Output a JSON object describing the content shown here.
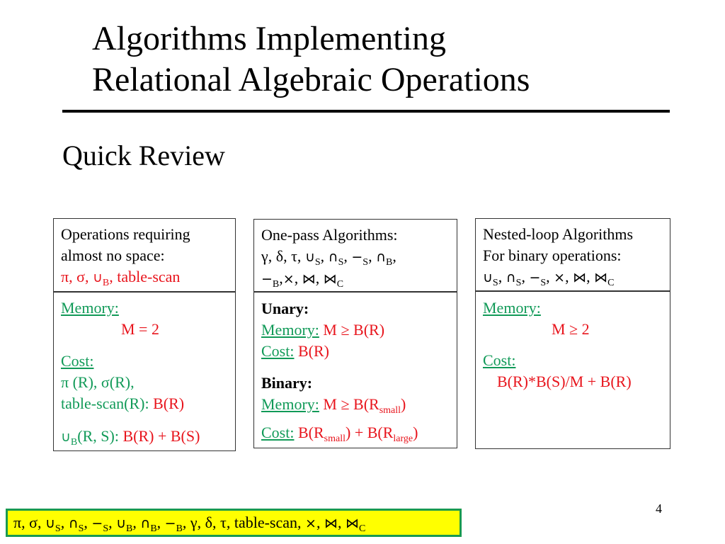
{
  "colors": {
    "k": "#000000",
    "r": "#e8141c",
    "g": "#119a58",
    "legend_bg": "#ffff00",
    "legend_border": "#1a9a50"
  },
  "title": {
    "line1": "Algorithms Implementing",
    "line2": "Relational Algebraic Operations"
  },
  "subtitle": "Quick Review",
  "page_number": "4",
  "boxes": [
    {
      "header": [
        [
          {
            "t": "Operations requiring",
            "k": "k"
          }
        ],
        [
          {
            "t": "almost no space:",
            "k": "k"
          }
        ],
        [
          {
            "t": "π, σ, ",
            "k": "r"
          },
          {
            "t": "∪",
            "k": "r",
            "sym": true
          },
          {
            "t": "",
            "s": "B",
            "k": "r"
          },
          {
            "t": ", table-scan",
            "k": "r"
          }
        ]
      ],
      "body": [
        [
          {
            "t": "Memory:",
            "k": "g",
            "u": true
          }
        ],
        [
          {
            "t": "M = 2",
            "k": "r"
          }
        ],
        [
          {
            "t": "Cost:",
            "k": "g",
            "u": true
          }
        ],
        [
          {
            "t": "π (R), σ(R),",
            "k": "g"
          }
        ],
        [
          {
            "t": "table-scan(R):  ",
            "k": "g"
          },
          {
            "t": "B(R)",
            "k": "r"
          }
        ],
        [
          {
            "t": "∪",
            "k": "g",
            "sym": true
          },
          {
            "t": "",
            "s": "B",
            "k": "g"
          },
          {
            "t": "(R, S): ",
            "k": "g"
          },
          {
            "t": "B(R) + B(S)",
            "k": "r"
          }
        ]
      ]
    },
    {
      "header": [
        [
          {
            "t": "One-pass Algorithms:",
            "k": "k"
          }
        ],
        [
          {
            "t": "γ,  δ,  τ, ",
            "k": "k"
          },
          {
            "t": "∪",
            "k": "k",
            "sym": true
          },
          {
            "t": "",
            "s": "S",
            "k": "k"
          },
          {
            "t": ", ",
            "k": "k"
          },
          {
            "t": "∩",
            "k": "k",
            "sym": true
          },
          {
            "t": "",
            "s": "S",
            "k": "k"
          },
          {
            "t": ", ",
            "k": "k"
          },
          {
            "t": "−",
            "k": "k",
            "sym": true
          },
          {
            "t": "",
            "s": "S",
            "k": "k"
          },
          {
            "t": ", ",
            "k": "k"
          },
          {
            "t": "∩",
            "k": "k",
            "sym": true
          },
          {
            "t": "",
            "s": "B",
            "k": "k"
          },
          {
            "t": ",",
            "k": "k"
          }
        ],
        [
          {
            "t": "−",
            "k": "k",
            "sym": true
          },
          {
            "t": "",
            "s": "B",
            "k": "k"
          },
          {
            "t": ",",
            "k": "k"
          },
          {
            "t": "×",
            "k": "k",
            "sym": true
          },
          {
            "t": ",  ",
            "k": "k"
          },
          {
            "t": "⋈",
            "k": "k",
            "sym": true
          },
          {
            "t": ", ",
            "k": "k"
          },
          {
            "t": "⋈",
            "k": "k",
            "sym": true
          },
          {
            "t": "",
            "s": "C",
            "k": "k"
          }
        ]
      ],
      "body": [
        [
          {
            "t": "Unary:",
            "k": "k",
            "b": true
          }
        ],
        [
          {
            "t": "Memory:",
            "k": "g",
            "u": true
          },
          {
            "t": " M ≥ B(R)",
            "k": "r"
          }
        ],
        [
          {
            "t": "Cost:",
            "k": "g",
            "u": true
          },
          {
            "t": "  B(R)",
            "k": "r"
          }
        ],
        [
          {
            "t": "Binary:",
            "k": "k",
            "b": true
          }
        ],
        [
          {
            "t": "Memory:",
            "k": "g",
            "u": true
          },
          {
            "t": " M ≥ B(R",
            "k": "r"
          },
          {
            "t": "",
            "s": "small",
            "k": "r"
          },
          {
            "t": ")",
            "k": "r"
          }
        ],
        [
          {
            "t": "Cost:",
            "k": "g",
            "u": true
          },
          {
            "t": " B(R",
            "k": "r"
          },
          {
            "t": "",
            "s": "small",
            "k": "r"
          },
          {
            "t": ") + B(R",
            "k": "r"
          },
          {
            "t": "",
            "s": "large",
            "k": "r"
          },
          {
            "t": ")",
            "k": "r"
          }
        ]
      ]
    },
    {
      "header": [
        [
          {
            "t": "Nested-loop Algorithms",
            "k": "k"
          }
        ],
        [
          {
            "t": "For binary operations:",
            "k": "k"
          }
        ],
        [
          {
            "t": "∪",
            "k": "k",
            "sym": true
          },
          {
            "t": "",
            "s": "S",
            "k": "k"
          },
          {
            "t": ", ",
            "k": "k"
          },
          {
            "t": "∩",
            "k": "k",
            "sym": true
          },
          {
            "t": "",
            "s": "S",
            "k": "k"
          },
          {
            "t": ", ",
            "k": "k"
          },
          {
            "t": "−",
            "k": "k",
            "sym": true
          },
          {
            "t": "",
            "s": "S",
            "k": "k"
          },
          {
            "t": ", ",
            "k": "k"
          },
          {
            "t": "×",
            "k": "k",
            "sym": true
          },
          {
            "t": ",  ",
            "k": "k"
          },
          {
            "t": "⋈",
            "k": "k",
            "sym": true
          },
          {
            "t": ", ",
            "k": "k"
          },
          {
            "t": "⋈",
            "k": "k",
            "sym": true
          },
          {
            "t": "",
            "s": "C",
            "k": "k"
          }
        ]
      ],
      "body": [
        [
          {
            "t": "Memory:",
            "k": "g",
            "u": true
          }
        ],
        [
          {
            "t": "M ≥ 2",
            "k": "r"
          }
        ],
        [
          {
            "t": "Cost:",
            "k": "g",
            "u": true
          }
        ],
        [
          {
            "t": "B(R)*B(S)/M + B(R)",
            "k": "r"
          }
        ]
      ]
    }
  ],
  "legend": [
    {
      "t": "π, σ, ",
      "k": "k"
    },
    {
      "t": "∪",
      "k": "k",
      "sym": true
    },
    {
      "t": "",
      "s": "S",
      "k": "k"
    },
    {
      "t": ", ",
      "k": "k"
    },
    {
      "t": "∩",
      "k": "k",
      "sym": true
    },
    {
      "t": "",
      "s": "S",
      "k": "k"
    },
    {
      "t": ", ",
      "k": "k"
    },
    {
      "t": "−",
      "k": "k",
      "sym": true
    },
    {
      "t": "",
      "s": "S",
      "k": "k"
    },
    {
      "t": ", ",
      "k": "k"
    },
    {
      "t": "∪",
      "k": "k",
      "sym": true
    },
    {
      "t": "",
      "s": "B",
      "k": "k"
    },
    {
      "t": ", ",
      "k": "k"
    },
    {
      "t": "∩",
      "k": "k",
      "sym": true
    },
    {
      "t": "",
      "s": "B",
      "k": "k"
    },
    {
      "t": ", ",
      "k": "k"
    },
    {
      "t": "−",
      "k": "k",
      "sym": true
    },
    {
      "t": "",
      "s": "B",
      "k": "k"
    },
    {
      "t": ", γ,  δ,  τ, table-scan,  ",
      "k": "k"
    },
    {
      "t": "×",
      "k": "k",
      "sym": true
    },
    {
      "t": ",  ",
      "k": "k"
    },
    {
      "t": "⋈",
      "k": "k",
      "sym": true
    },
    {
      "t": ", ",
      "k": "k"
    },
    {
      "t": "⋈",
      "k": "k",
      "sym": true
    },
    {
      "t": "",
      "s": "C",
      "k": "k"
    }
  ]
}
